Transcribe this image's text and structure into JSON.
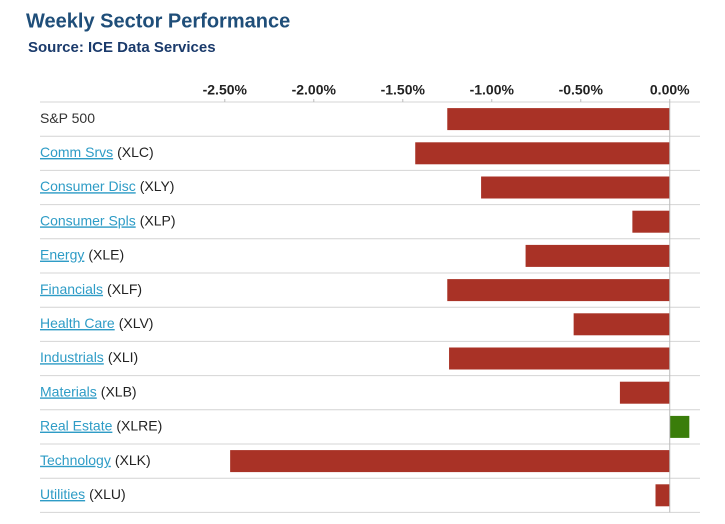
{
  "chart_data": {
    "type": "hbar",
    "title": "Weekly Sector Performance",
    "subtitle": "Source: ICE Data Services",
    "categories": [
      "S&P 500",
      "Comm Srvs",
      "Consumer Disc",
      "Consumer Spls",
      "Energy",
      "Financials",
      "Health Care",
      "Industrials",
      "Materials",
      "Real Estate",
      "Technology",
      "Utilities"
    ],
    "tickers": [
      null,
      "(XLC)",
      "(XLY)",
      "(XLP)",
      "(XLE)",
      "(XLF)",
      "(XLV)",
      "(XLI)",
      "(XLB)",
      "(XLRE)",
      "(XLK)",
      "(XLU)"
    ],
    "values": [
      -1.25,
      -1.43,
      -1.06,
      -0.21,
      -0.81,
      -1.25,
      -0.54,
      -1.24,
      -0.28,
      0.11,
      -2.47,
      -0.08
    ],
    "colors": [
      "#a93226",
      "#a93226",
      "#a93226",
      "#a93226",
      "#a93226",
      "#a93226",
      "#a93226",
      "#a93226",
      "#a93226",
      "#3a7d0a",
      "#a93226",
      "#a93226"
    ],
    "xlim": [
      -2.6,
      0.17
    ],
    "xticks": [
      {
        "value": -2.5,
        "label": "-2.50%"
      },
      {
        "value": -2.0,
        "label": "-2.00%"
      },
      {
        "value": -1.5,
        "label": "-1.50%"
      },
      {
        "value": -1.0,
        "label": "-1.00%"
      },
      {
        "value": -0.5,
        "label": "-0.50%"
      },
      {
        "value": 0,
        "label": "0.00%"
      }
    ]
  }
}
